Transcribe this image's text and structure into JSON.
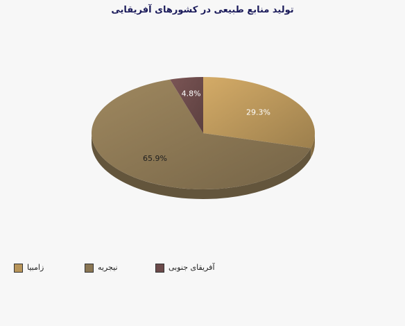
{
  "chart_data": {
    "type": "pie",
    "title": "تولید منابع طبیعی در کشورهای آفریقایی",
    "slices": [
      {
        "name": "زامبیا",
        "value": 29.3,
        "label": "29.3%",
        "color": "#b8955a"
      },
      {
        "name": "نیجریه",
        "value": 65.9,
        "label": "65.9%",
        "color": "#8a7653"
      },
      {
        "name": "آفریقای جنوبی",
        "value": 4.8,
        "label": "4.8%",
        "color": "#6b4a4a"
      }
    ],
    "legend_position": "bottom-left",
    "three_d": true
  }
}
